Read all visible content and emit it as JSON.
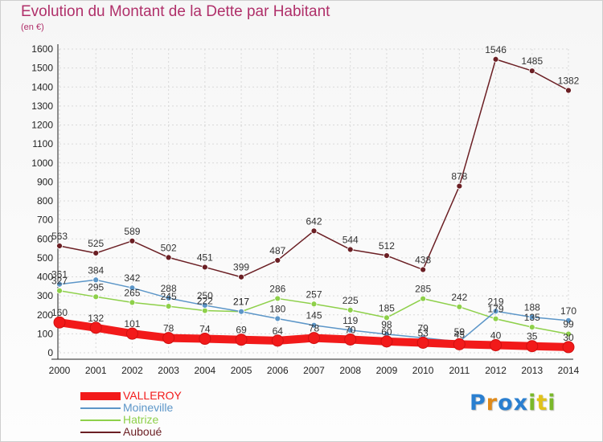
{
  "title": "Evolution du Montant de la Dette par Habitant",
  "subtitle": "(en €)",
  "logo": {
    "text": "Proxiti",
    "letters": [
      "P",
      "r",
      "o",
      "x",
      "i",
      "t",
      "i"
    ],
    "colors": [
      "#2a7fd0",
      "#e08a1a",
      "#2a7fd0",
      "#2a7fd0",
      "#7ab82a",
      "#e0c21a",
      "#7ab82a"
    ]
  },
  "chart_data": {
    "type": "line",
    "title": "Evolution du Montant de la Dette par Habitant",
    "subtitle": "(en €)",
    "x": [
      2000,
      2001,
      2002,
      2003,
      2004,
      2005,
      2006,
      2007,
      2008,
      2009,
      2010,
      2011,
      2012,
      2013,
      2014
    ],
    "ylim": [
      0,
      1600
    ],
    "yticks": [
      0,
      100,
      200,
      300,
      400,
      500,
      600,
      700,
      800,
      900,
      1000,
      1100,
      1200,
      1300,
      1400,
      1500,
      1600
    ],
    "grid": true,
    "legend_position": "bottom-left",
    "series": [
      {
        "name": "VALLEROY",
        "color": "#f21a1a",
        "values": [
          160,
          132,
          101,
          78,
          74,
          69,
          64,
          78,
          70,
          60,
          53,
          45,
          40,
          35,
          30
        ]
      },
      {
        "name": "Moineville",
        "color": "#5c96c8",
        "values": [
          361,
          384,
          342,
          288,
          250,
          217,
          180,
          145,
          119,
          98,
          79,
          59,
          219,
          188,
          170
        ]
      },
      {
        "name": "Hatrize",
        "color": "#8ed04a",
        "values": [
          327,
          295,
          265,
          245,
          222,
          217,
          286,
          257,
          225,
          185,
          285,
          242,
          179,
          135,
          99
        ]
      },
      {
        "name": "Auboué",
        "color": "#6b1f24",
        "values": [
          563,
          525,
          589,
          502,
          451,
          399,
          487,
          642,
          544,
          512,
          438,
          878,
          1546,
          1485,
          1382
        ]
      }
    ]
  }
}
